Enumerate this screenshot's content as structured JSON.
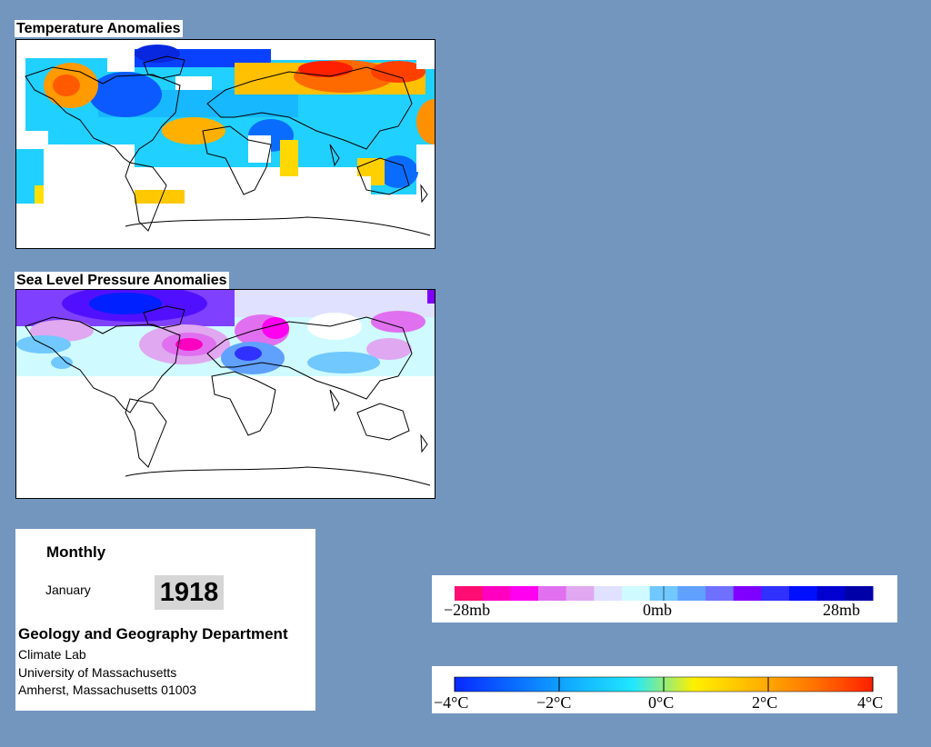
{
  "maps": {
    "temperature_title": "Temperature Anomalies",
    "pressure_title": "Sea Level Pressure Anomalies"
  },
  "info": {
    "frequency": "Monthly",
    "month": "January",
    "year": "1918",
    "department": "Geology and Geography Department",
    "lab": "Climate Lab",
    "university": "University of Massachusetts",
    "address": "Amherst, Massachusetts 01003"
  },
  "pressure_legend": {
    "labels": [
      "−28mb",
      "0mb",
      "28mb"
    ],
    "colors": [
      "#ff0d73",
      "#ff00c0",
      "#ff00f0",
      "#e070f0",
      "#e0a8f0",
      "#e0e0ff",
      "#cffaff",
      "#70c8ff",
      "#60a0ff",
      "#7070ff",
      "#8000ff",
      "#3030ff",
      "#0010ff",
      "#0000d0",
      "#0000a8"
    ]
  },
  "temperature_legend": {
    "labels": [
      "−4°C",
      "−2°C",
      "0°C",
      "2°C",
      "4°C"
    ],
    "colors": [
      "#0828ff",
      "#0a6cff",
      "#12b0ff",
      "#20e8ff",
      "#fff000",
      "#ffb800",
      "#ff7400",
      "#ff2000"
    ]
  },
  "colors": {
    "background": "#7396bf",
    "warm": "#ff8800",
    "cold": "#0a5aff"
  }
}
